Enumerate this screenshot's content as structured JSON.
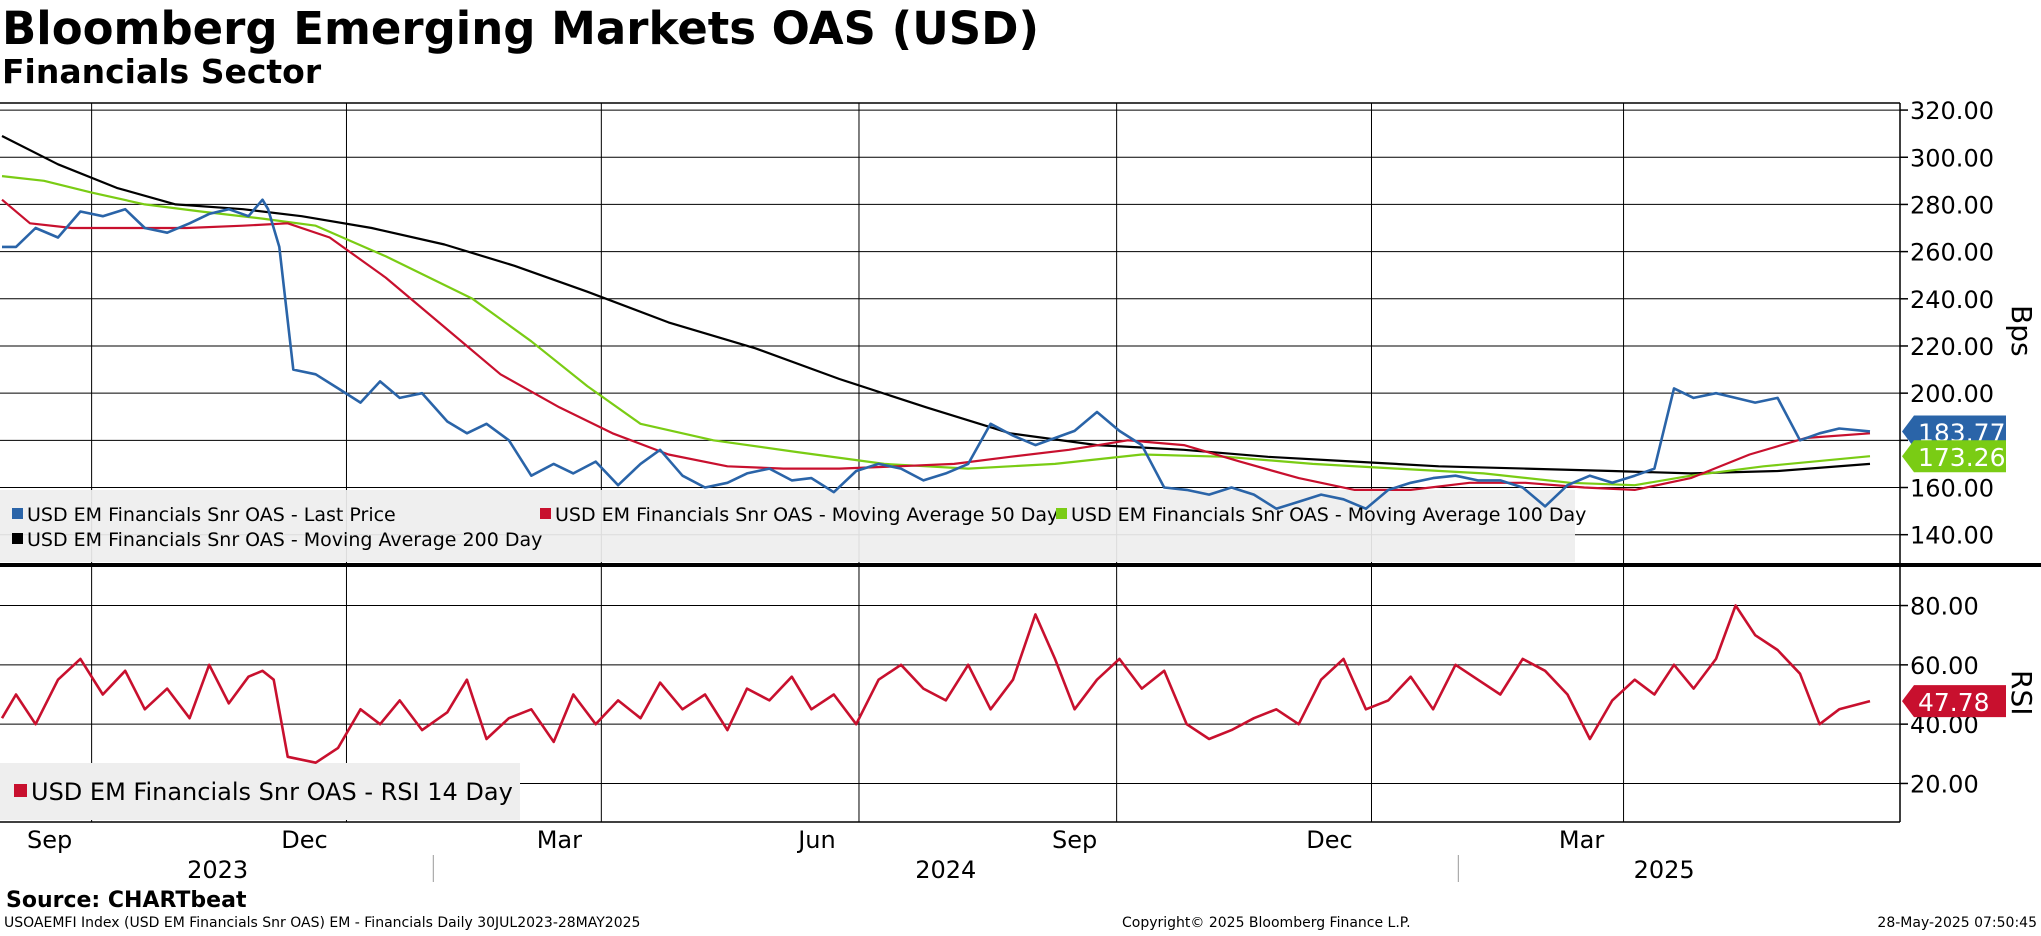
{
  "header": {
    "title": "Bloomberg Emerging Markets OAS (USD)",
    "subtitle": "Financials Sector"
  },
  "footer": {
    "source": "Source: CHARTbeat",
    "index_info": "USOAEMFI Index (USD EM Financials Snr OAS) EM - Financials  Daily 30JUL2023-28MAY2025",
    "copyright": "Copyright© 2025 Bloomberg Finance L.P.",
    "timestamp": "28-May-2025 07:50:45"
  },
  "colors": {
    "last_price": "#2a64a8",
    "last_price_faded": "#8aa9cc",
    "ma50": "#c8102e",
    "ma100": "#7acc14",
    "ma200": "#000000",
    "rsi": "#c8102e"
  },
  "chart_data": [
    {
      "type": "line",
      "panel": "price",
      "ylabel": "Bps",
      "ylim": [
        128,
        323
      ],
      "yticks": [
        "320.00",
        "300.00",
        "280.00",
        "260.00",
        "240.00",
        "220.00",
        "200.00",
        "180.00",
        "160.00",
        "140.00"
      ],
      "x_start": "2023-07-31",
      "x_end": "2025-05-28",
      "xticks": [
        {
          "date": "2023-09-01",
          "label": "Sep"
        },
        {
          "date": "2023-12-01",
          "label": "Dec"
        },
        {
          "date": "2024-03-01",
          "label": "Mar"
        },
        {
          "date": "2024-06-01",
          "label": "Jun"
        },
        {
          "date": "2024-09-01",
          "label": "Sep"
        },
        {
          "date": "2024-12-01",
          "label": "Dec"
        },
        {
          "date": "2025-03-01",
          "label": "Mar"
        }
      ],
      "year_labels": [
        {
          "label": "2023",
          "from": "2023-07-31",
          "to": "2024-01-01"
        },
        {
          "label": "2024",
          "from": "2024-01-01",
          "to": "2025-01-01"
        },
        {
          "label": "2025",
          "from": "2025-01-01",
          "to": "2025-05-28"
        }
      ],
      "legend": [
        "USD EM Financials Snr OAS - Last Price",
        "USD EM Financials Snr OAS - Moving Average 50 Day",
        "USD EM Financials Snr OAS - Moving Average 100 Day",
        "USD EM Financials Snr OAS - Moving Average 200 Day"
      ],
      "badges": [
        {
          "text": "183.77",
          "value": 183.77,
          "color": "#2a64a8"
        },
        {
          "text": "173.26",
          "value": 173.26,
          "color": "#7acc14"
        }
      ],
      "series": [
        {
          "name": "USD EM Financials Snr OAS - Last Price",
          "color": "#2a64a8",
          "x": [
            "2023-07-31",
            "2023-08-05",
            "2023-08-12",
            "2023-08-20",
            "2023-08-28",
            "2023-09-05",
            "2023-09-13",
            "2023-09-20",
            "2023-09-28",
            "2023-10-06",
            "2023-10-13",
            "2023-10-20",
            "2023-10-27",
            "2023-11-01",
            "2023-11-03",
            "2023-11-07",
            "2023-11-12",
            "2023-11-20",
            "2023-11-28",
            "2023-12-06",
            "2023-12-13",
            "2023-12-20",
            "2023-12-28",
            "2024-01-06",
            "2024-01-13",
            "2024-01-20",
            "2024-01-28",
            "2024-02-05",
            "2024-02-13",
            "2024-02-20",
            "2024-02-28",
            "2024-03-07",
            "2024-03-15",
            "2024-03-22",
            "2024-03-30",
            "2024-04-07",
            "2024-04-15",
            "2024-04-22",
            "2024-04-30",
            "2024-05-08",
            "2024-05-15",
            "2024-05-23",
            "2024-05-31",
            "2024-06-08",
            "2024-06-16",
            "2024-06-24",
            "2024-07-02",
            "2024-07-10",
            "2024-07-18",
            "2024-07-26",
            "2024-08-03",
            "2024-08-10",
            "2024-08-17",
            "2024-08-25",
            "2024-09-02",
            "2024-09-10",
            "2024-09-18",
            "2024-09-26",
            "2024-10-04",
            "2024-10-12",
            "2024-10-20",
            "2024-10-28",
            "2024-11-05",
            "2024-11-13",
            "2024-11-21",
            "2024-11-29",
            "2024-12-07",
            "2024-12-15",
            "2024-12-23",
            "2024-12-31",
            "2025-01-08",
            "2025-01-16",
            "2025-01-24",
            "2025-02-01",
            "2025-02-09",
            "2025-02-17",
            "2025-02-25",
            "2025-03-05",
            "2025-03-12",
            "2025-03-19",
            "2025-03-26",
            "2025-04-03",
            "2025-04-10",
            "2025-04-17",
            "2025-04-25",
            "2025-05-03",
            "2025-05-10",
            "2025-05-17",
            "2025-05-28"
          ],
          "values": [
            262,
            262,
            270,
            266,
            277,
            275,
            278,
            270,
            268,
            272,
            276,
            278,
            275,
            282,
            278,
            262,
            210,
            208,
            202,
            196,
            205,
            198,
            200,
            188,
            183,
            187,
            180,
            165,
            170,
            166,
            171,
            161,
            170,
            176,
            165,
            160,
            162,
            166,
            168,
            163,
            164,
            158,
            167,
            170,
            168,
            163,
            166,
            170,
            187,
            182,
            178,
            181,
            184,
            192,
            184,
            178,
            160,
            159,
            157,
            160,
            157,
            151,
            154,
            157,
            155,
            151,
            159,
            162,
            164,
            165,
            163,
            163,
            160,
            152,
            161,
            165,
            162,
            165,
            168,
            202,
            198,
            200,
            198,
            196,
            198,
            180,
            183,
            185,
            183.77
          ]
        },
        {
          "name": "USD EM Financials Snr OAS - Moving Average 50 Day",
          "color": "#c8102e",
          "x": [
            "2023-07-31",
            "2023-08-10",
            "2023-08-25",
            "2023-09-15",
            "2023-10-05",
            "2023-10-25",
            "2023-11-10",
            "2023-11-25",
            "2023-12-15",
            "2024-01-05",
            "2024-01-25",
            "2024-02-15",
            "2024-03-05",
            "2024-03-25",
            "2024-04-15",
            "2024-05-05",
            "2024-05-25",
            "2024-06-15",
            "2024-07-05",
            "2024-07-25",
            "2024-08-15",
            "2024-09-05",
            "2024-09-25",
            "2024-10-15",
            "2024-11-05",
            "2024-11-25",
            "2024-12-15",
            "2025-01-05",
            "2025-01-25",
            "2025-02-15",
            "2025-03-05",
            "2025-03-25",
            "2025-04-15",
            "2025-05-05",
            "2025-05-28"
          ],
          "values": [
            282,
            272,
            270,
            270,
            270,
            271,
            272,
            266,
            249,
            228,
            208,
            194,
            183,
            174,
            169,
            168,
            168,
            169,
            170,
            173,
            176,
            180,
            178,
            171,
            164,
            159,
            159,
            162,
            162,
            160,
            159,
            164,
            174,
            181,
            183
          ]
        },
        {
          "name": "USD EM Financials Snr OAS - Moving Average 100 Day",
          "color": "#7acc14",
          "x": [
            "2023-07-31",
            "2023-08-15",
            "2023-09-01",
            "2023-09-20",
            "2023-10-10",
            "2023-11-01",
            "2023-11-20",
            "2023-12-15",
            "2024-01-15",
            "2024-02-05",
            "2024-02-25",
            "2024-03-15",
            "2024-04-10",
            "2024-05-10",
            "2024-06-10",
            "2024-07-10",
            "2024-08-10",
            "2024-09-10",
            "2024-10-10",
            "2024-11-10",
            "2024-12-10",
            "2025-01-10",
            "2025-02-10",
            "2025-03-05",
            "2025-03-25",
            "2025-04-20",
            "2025-05-28"
          ],
          "values": [
            292,
            290,
            285,
            280,
            277,
            274,
            271,
            258,
            240,
            222,
            203,
            187,
            180,
            175,
            170,
            168,
            170,
            174,
            173,
            170,
            168,
            166,
            162,
            161,
            165,
            169,
            173.26
          ]
        },
        {
          "name": "USD EM Financials Snr OAS - Moving Average 200 Day",
          "color": "#000000",
          "x": [
            "2023-07-31",
            "2023-08-20",
            "2023-09-10",
            "2023-10-01",
            "2023-10-25",
            "2023-11-15",
            "2023-12-10",
            "2024-01-05",
            "2024-01-30",
            "2024-02-25",
            "2024-03-25",
            "2024-04-25",
            "2024-05-25",
            "2024-06-25",
            "2024-07-25",
            "2024-08-25",
            "2024-09-25",
            "2024-10-25",
            "2024-11-25",
            "2024-12-25",
            "2025-01-25",
            "2025-02-25",
            "2025-03-25",
            "2025-04-25",
            "2025-05-28"
          ],
          "values": [
            309,
            297,
            287,
            280,
            278,
            275,
            270,
            263,
            254,
            243,
            230,
            219,
            206,
            194,
            183,
            178,
            176,
            173,
            171,
            169,
            168,
            167,
            166,
            167,
            170
          ]
        }
      ]
    },
    {
      "type": "line",
      "panel": "rsi",
      "ylabel": "RSI",
      "ylim": [
        7,
        93
      ],
      "yticks": [
        "80.00",
        "60.00",
        "40.00",
        "20.00"
      ],
      "legend": [
        "USD EM Financials Snr OAS - RSI 14 Day"
      ],
      "badges": [
        {
          "text": "47.78",
          "value": 47.78,
          "color": "#c8102e"
        }
      ],
      "series": [
        {
          "name": "USD EM Financials Snr OAS - RSI 14 Day",
          "color": "#c8102e",
          "x": [
            "2023-07-31",
            "2023-08-05",
            "2023-08-12",
            "2023-08-20",
            "2023-08-28",
            "2023-09-05",
            "2023-09-13",
            "2023-09-20",
            "2023-09-28",
            "2023-10-06",
            "2023-10-13",
            "2023-10-20",
            "2023-10-27",
            "2023-11-01",
            "2023-11-05",
            "2023-11-10",
            "2023-11-20",
            "2023-11-28",
            "2023-12-06",
            "2023-12-13",
            "2023-12-20",
            "2023-12-28",
            "2024-01-06",
            "2024-01-13",
            "2024-01-20",
            "2024-01-28",
            "2024-02-05",
            "2024-02-13",
            "2024-02-20",
            "2024-02-28",
            "2024-03-07",
            "2024-03-15",
            "2024-03-22",
            "2024-03-30",
            "2024-04-07",
            "2024-04-15",
            "2024-04-22",
            "2024-04-30",
            "2024-05-08",
            "2024-05-15",
            "2024-05-23",
            "2024-05-31",
            "2024-06-08",
            "2024-06-16",
            "2024-06-24",
            "2024-07-02",
            "2024-07-10",
            "2024-07-18",
            "2024-07-26",
            "2024-08-03",
            "2024-08-10",
            "2024-08-17",
            "2024-08-25",
            "2024-09-02",
            "2024-09-10",
            "2024-09-18",
            "2024-09-26",
            "2024-10-04",
            "2024-10-12",
            "2024-10-20",
            "2024-10-28",
            "2024-11-05",
            "2024-11-13",
            "2024-11-21",
            "2024-11-29",
            "2024-12-07",
            "2024-12-15",
            "2024-12-23",
            "2024-12-31",
            "2025-01-08",
            "2025-01-16",
            "2025-01-24",
            "2025-02-01",
            "2025-02-09",
            "2025-02-17",
            "2025-02-25",
            "2025-03-05",
            "2025-03-12",
            "2025-03-19",
            "2025-03-26",
            "2025-04-03",
            "2025-04-10",
            "2025-04-17",
            "2025-04-25",
            "2025-05-03",
            "2025-05-10",
            "2025-05-17",
            "2025-05-28"
          ],
          "values": [
            42,
            50,
            40,
            55,
            62,
            50,
            58,
            45,
            52,
            42,
            60,
            47,
            56,
            58,
            55,
            29,
            27,
            32,
            45,
            40,
            48,
            38,
            44,
            55,
            35,
            42,
            45,
            34,
            50,
            40,
            48,
            42,
            54,
            45,
            50,
            38,
            52,
            48,
            56,
            45,
            50,
            40,
            55,
            60,
            52,
            48,
            60,
            45,
            55,
            77,
            62,
            45,
            55,
            62,
            52,
            58,
            40,
            35,
            38,
            42,
            45,
            40,
            55,
            62,
            45,
            48,
            56,
            45,
            60,
            55,
            50,
            62,
            58,
            50,
            35,
            48,
            55,
            50,
            60,
            52,
            62,
            80,
            70,
            65,
            57,
            40,
            45,
            47.78
          ]
        }
      ]
    }
  ]
}
